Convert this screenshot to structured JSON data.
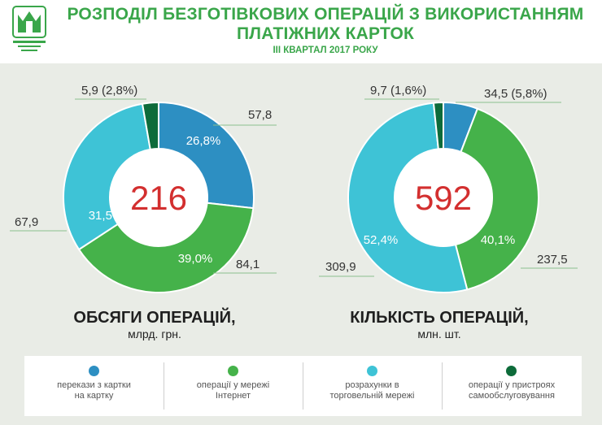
{
  "header": {
    "title_line1": "РОЗПОДІЛ БЕЗГОТІВКОВИХ ОПЕРАЦІЙ З ВИКОРИСТАННЯМ",
    "title_line2": "ПЛАТІЖНИХ КАРТОК",
    "subtitle": "ІІІ КВАРТАЛ 2017 РОКУ",
    "logo_icon": "national-bank-logo"
  },
  "colors": {
    "title_green": "#3aa64a",
    "total_red": "#d32f2f",
    "slice_card_to_card": "#2d8fc2",
    "slice_internet": "#45b24a",
    "slice_retail": "#3ec3d6",
    "slice_self_service": "#0d6b3a"
  },
  "legend": [
    {
      "label_line1": "перекази з картки",
      "label_line2": "на картку",
      "color": "#2d8fc2"
    },
    {
      "label_line1": "операції у мережі",
      "label_line2": "Інтернет",
      "color": "#45b24a"
    },
    {
      "label_line1": "розрахунки в",
      "label_line2": "торговельній мережі",
      "color": "#3ec3d6"
    },
    {
      "label_line1": "операції у пристроях",
      "label_line2": "самообслуговування",
      "color": "#0d6b3a"
    }
  ],
  "chart_data": [
    {
      "type": "pie",
      "title": "ОБСЯГИ ОПЕРАЦІЙ,",
      "subtitle": "млрд. грн.",
      "total": "216",
      "categories": [
        "перекази з картки на картку",
        "операції у мережі Інтернет",
        "розрахунки в торговельній мережі",
        "операції у пристроях самообслуговування"
      ],
      "values": [
        57.8,
        84.1,
        67.9,
        5.9
      ],
      "value_labels": [
        "57,8",
        "84,1",
        "67,9",
        "5,9 (2,8%)"
      ],
      "percent_labels": [
        "26,8%",
        "39,0%",
        "31,5%",
        ""
      ],
      "percents": [
        26.8,
        39.0,
        31.5,
        2.8
      ]
    },
    {
      "type": "pie",
      "title": "КІЛЬКІСТЬ ОПЕРАЦІЙ,",
      "subtitle": "млн. шт.",
      "total": "592",
      "categories": [
        "перекази з картки на картку",
        "операції у мережі Інтернет",
        "розрахунки в торговельній мережі",
        "операції у пристроях самообслуговування"
      ],
      "values": [
        34.5,
        237.5,
        309.9,
        9.7
      ],
      "value_labels": [
        "34,5 (5,8%)",
        "237,5",
        "309,9",
        "9,7 (1,6%)"
      ],
      "percent_labels": [
        "",
        "40,1%",
        "52,4%",
        ""
      ],
      "percents": [
        5.8,
        40.1,
        52.4,
        1.6
      ]
    }
  ]
}
